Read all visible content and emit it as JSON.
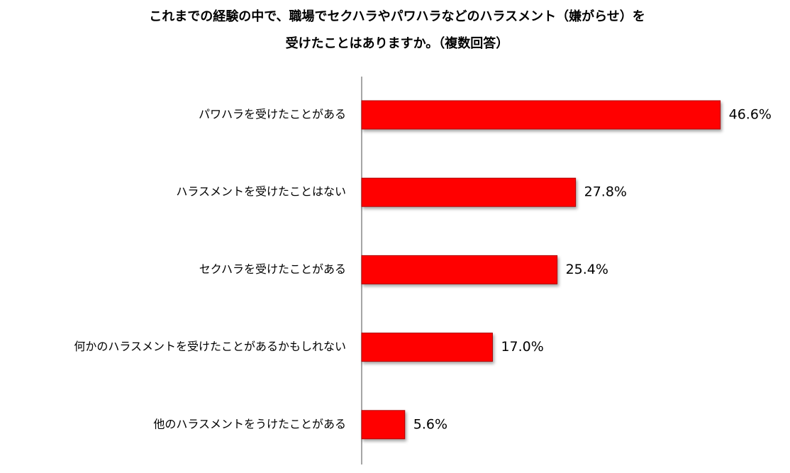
{
  "chart_data": {
    "type": "bar",
    "orientation": "horizontal",
    "title": [
      "これまでの経験の中で、職場でセクハラやパワハラなどのハラスメント（嫌がらせ）を",
      "受けたことはありますか。（複数回答）"
    ],
    "categories": [
      "パワハラを受けたことがある",
      "ハラスメントを受けたことはない",
      "セクハラを受けたことがある",
      "何かのハラスメントを受けたことがあるかもしれない",
      "他のハラスメントをうけたことがある"
    ],
    "values": [
      46.6,
      27.8,
      25.4,
      17.0,
      5.6
    ],
    "value_labels": [
      "46.6%",
      "27.8%",
      "25.4%",
      "17.0%",
      "5.6%"
    ],
    "color": "#ff0000"
  }
}
